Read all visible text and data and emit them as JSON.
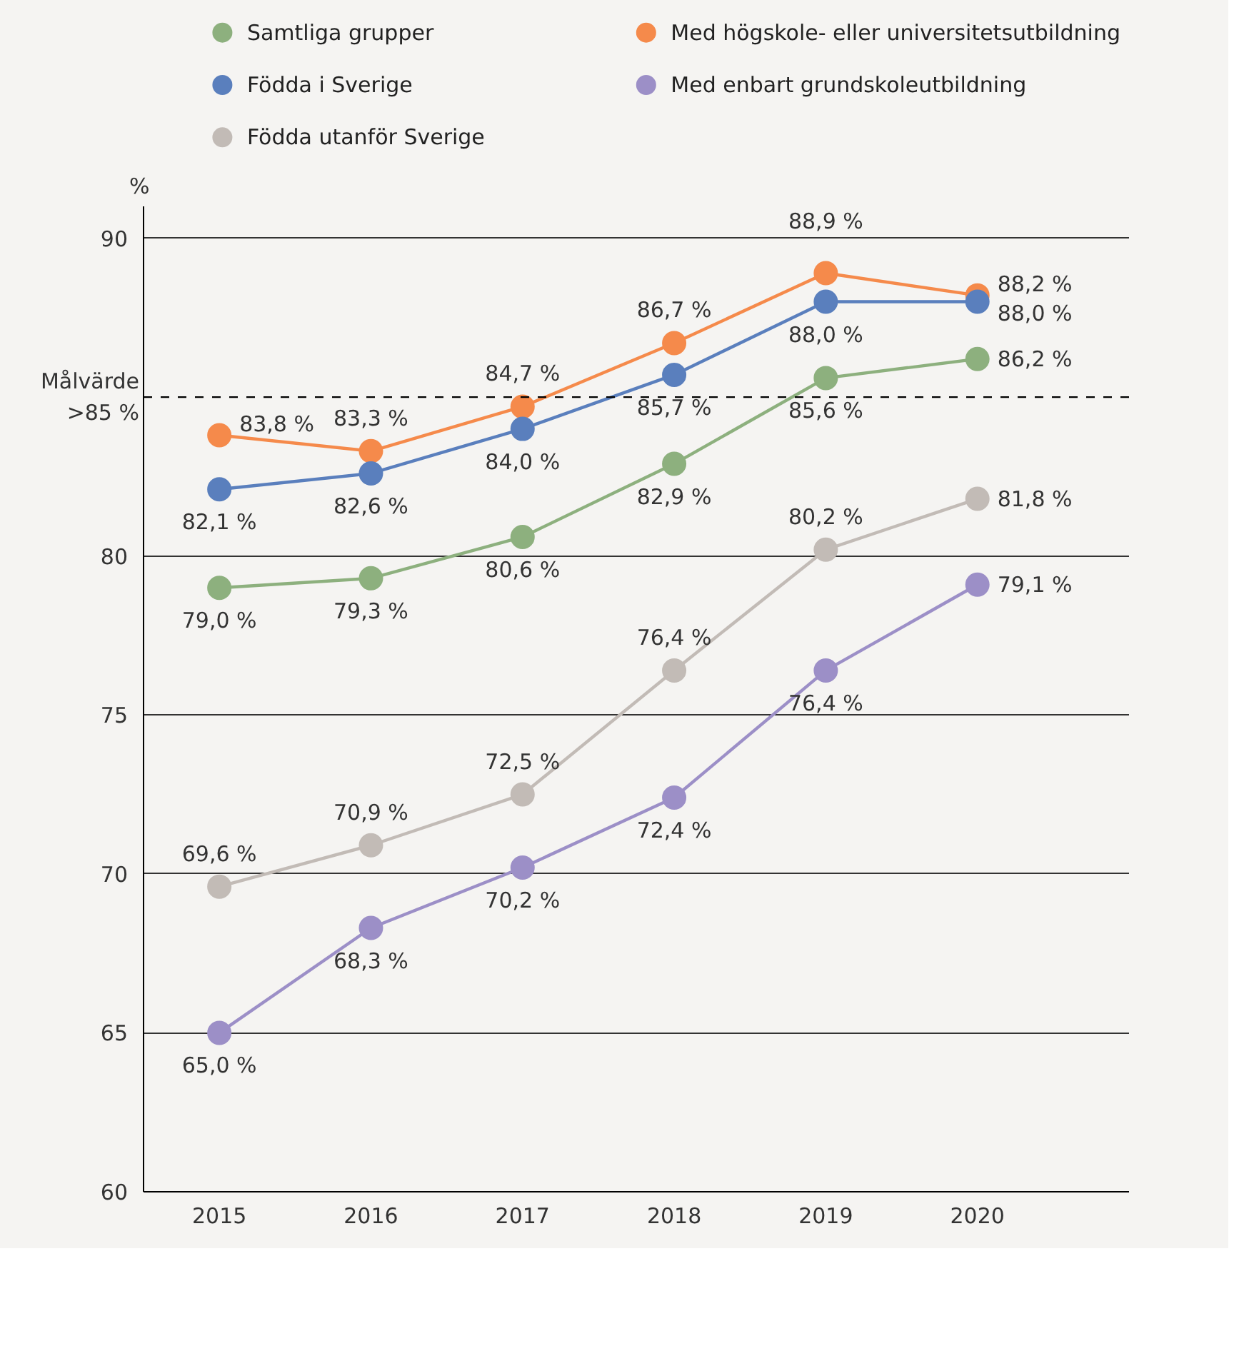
{
  "chart_data": {
    "type": "line",
    "categories": [
      "2015",
      "2016",
      "2017",
      "2018",
      "2019",
      "2020"
    ],
    "ylabel": "%",
    "ylim": [
      60,
      91
    ],
    "yticks": [
      60,
      65,
      70,
      75,
      80,
      90
    ],
    "grid": "y",
    "legend": "top",
    "marker": "circle",
    "line_style": "solid",
    "ref_lines": [
      {
        "axis": "y",
        "value": 85,
        "label": "Målvärde >85 %",
        "line_style": "dashed",
        "color": "#000000"
      }
    ],
    "series": [
      {
        "name": "Samtliga grupper",
        "color": "#8db07e",
        "values": [
          79.0,
          79.3,
          80.6,
          82.9,
          85.6,
          86.2
        ],
        "value_labels": [
          "79,0 %",
          "79,3 %",
          "80,6 %",
          "82,9 %",
          "85,6 %",
          "86,2 %"
        ]
      },
      {
        "name": "Med högskole- eller universitetsutbildning",
        "color": "#f58a4b",
        "values": [
          83.8,
          83.3,
          84.7,
          86.7,
          88.9,
          88.2
        ],
        "value_labels": [
          "83,8 %",
          "83,3 %",
          "84,7 %",
          "86,7 %",
          "88,9 %",
          "88,2 %"
        ]
      },
      {
        "name": "Födda i Sverige",
        "color": "#5a7fbd",
        "values": [
          82.1,
          82.6,
          84.0,
          85.7,
          88.0,
          88.0
        ],
        "value_labels": [
          "82,1 %",
          "82,6 %",
          "84,0 %",
          "85,7 %",
          "88,0 %",
          "88,0 %"
        ]
      },
      {
        "name": "Med enbart grundskoleutbildning",
        "color": "#9c8fc7",
        "values": [
          65.0,
          68.3,
          70.2,
          72.4,
          76.4,
          79.1
        ],
        "value_labels": [
          "65,0 %",
          "68,3 %",
          "70,2 %",
          "72,4 %",
          "76,4 %",
          "79,1 %"
        ]
      },
      {
        "name": "Födda utanför Sverige",
        "color": "#c2bbb6",
        "values": [
          69.6,
          70.9,
          72.5,
          76.4,
          80.2,
          81.8
        ],
        "value_labels": [
          "69,6 %",
          "70,9 %",
          "72,5 %",
          "76,4 %",
          "80,2 %",
          "81,8 %"
        ]
      }
    ]
  }
}
